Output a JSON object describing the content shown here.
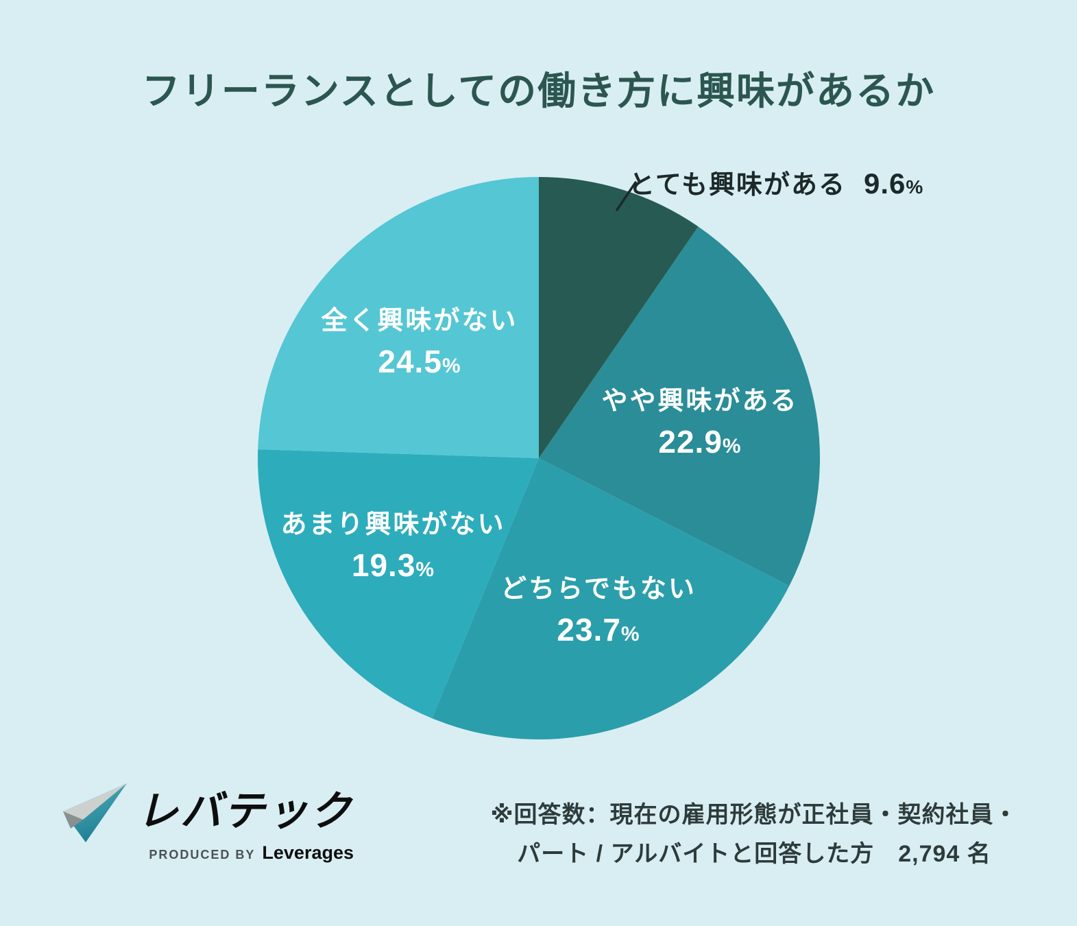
{
  "title": "フリーランスとしての働き方に興味があるか",
  "chart_data": {
    "type": "pie",
    "title": "フリーランスとしての働き方に興味があるか",
    "unit": "%",
    "percent_symbol": "%",
    "start_angle_deg": 0,
    "direction": "clockwise",
    "slices": [
      {
        "label": "とても興味がある",
        "value": 9.6,
        "color": "#275A52",
        "label_placement": "outside-top-right",
        "text_color": "#1D2929"
      },
      {
        "label": "やや興味がある",
        "value": 22.9,
        "color": "#2A8D97",
        "label_placement": "inside",
        "text_color": "#FFFFFF"
      },
      {
        "label": "どちらでもない",
        "value": 23.7,
        "color": "#2B9EAB",
        "label_placement": "inside",
        "text_color": "#FFFFFF"
      },
      {
        "label": "あまり興味がない",
        "value": 19.3,
        "color": "#2DACBC",
        "label_placement": "inside",
        "text_color": "#FFFFFF"
      },
      {
        "label": "全く興味がない",
        "value": 24.5,
        "color": "#55C6D4",
        "label_placement": "inside",
        "text_color": "#FFFFFF"
      }
    ]
  },
  "footer": {
    "note_line1": "※回答数：現在の雇用形態が正社員・契約社員・",
    "note_line2": "パート / アルバイトと回答した方　2,794 名",
    "logo": {
      "brand": "レバテック",
      "produced_by": "PRODUCED BY",
      "company": "Leverages"
    }
  },
  "colors": {
    "background": "#D9EEF3",
    "title": "#2C5650",
    "footnote": "#2E3B3B",
    "leader_line": "#1D2929"
  }
}
